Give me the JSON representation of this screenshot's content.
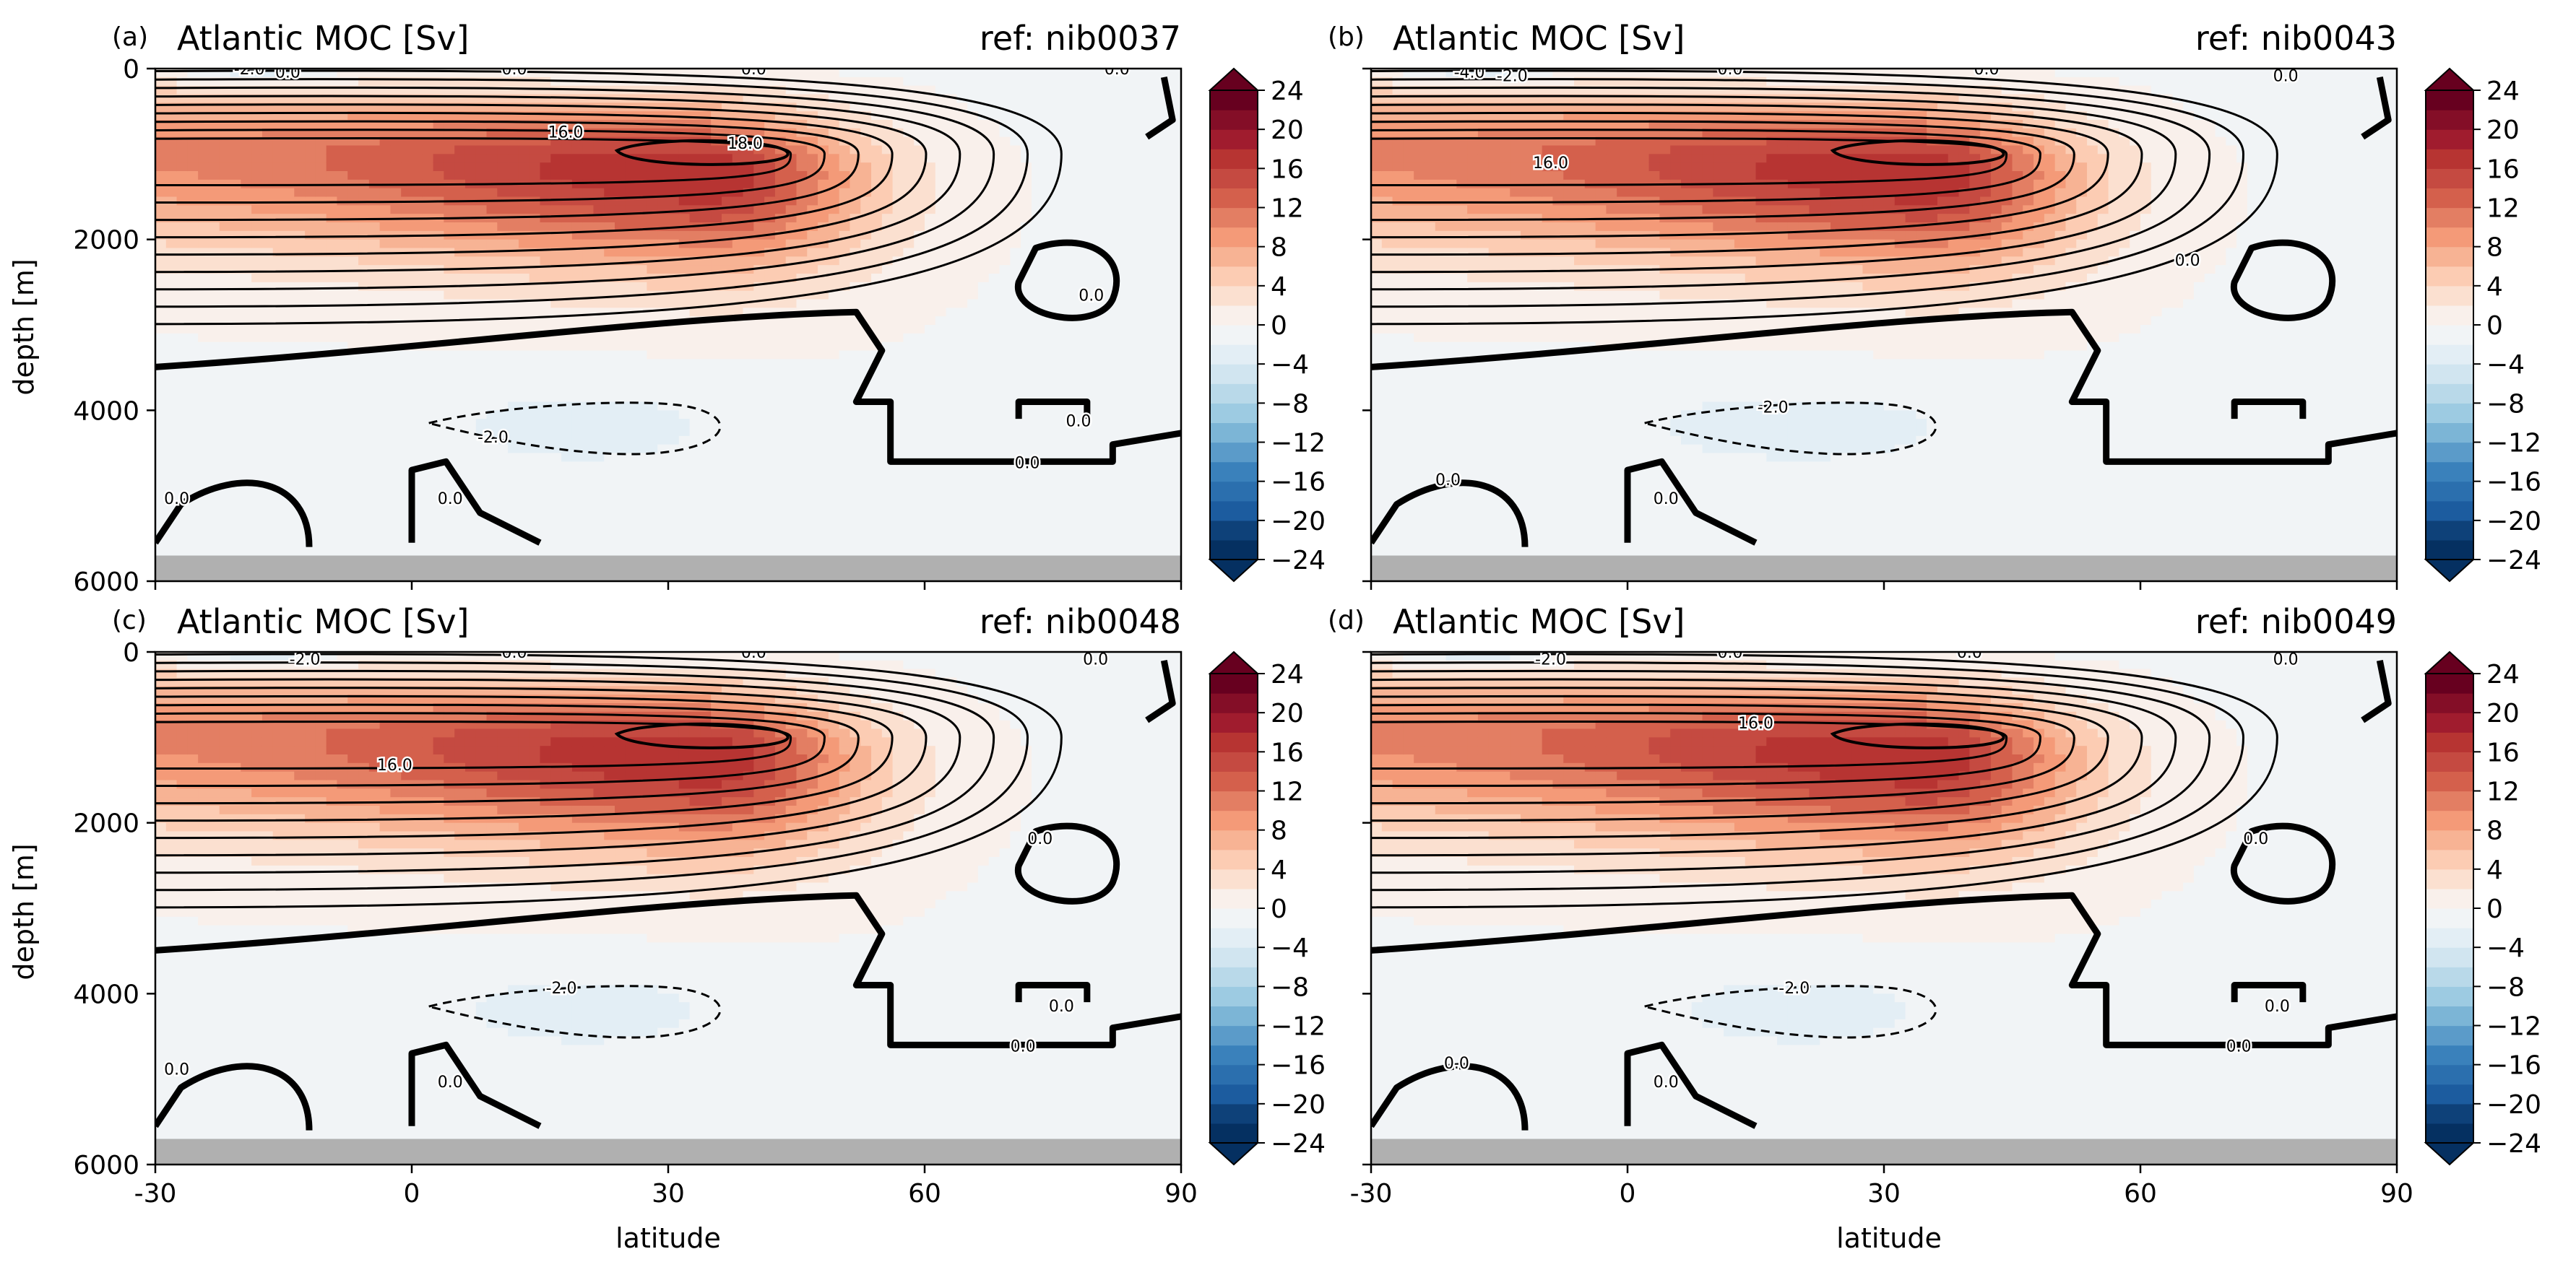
{
  "figure": {
    "panels": [
      {
        "letter": "(a)",
        "title": "Atlantic MOC [Sv]",
        "ref": "ref: nib0037",
        "clabels": [
          {
            "t": "-2.0",
            "lat": -19,
            "d": 0
          },
          {
            "t": "0.0",
            "lat": -14.5,
            "d": 40
          },
          {
            "t": "0.0",
            "lat": 12,
            "d": 0
          },
          {
            "t": "0.0",
            "lat": 40,
            "d": 0
          },
          {
            "t": "0.0",
            "lat": 82.5,
            "d": 0
          },
          {
            "t": "16.0",
            "lat": 18,
            "d": 740
          },
          {
            "t": "18.0",
            "lat": 39,
            "d": 870
          },
          {
            "t": "0.0",
            "lat": 79.5,
            "d": 2650
          },
          {
            "t": "-2.0",
            "lat": 9.5,
            "d": 4310
          },
          {
            "t": "0.0",
            "lat": 78,
            "d": 4120
          },
          {
            "t": "0.0",
            "lat": 72,
            "d": 4610
          },
          {
            "t": "0.0",
            "lat": -27.5,
            "d": 5030
          },
          {
            "t": "0.0",
            "lat": 4.5,
            "d": 5030
          }
        ]
      },
      {
        "letter": "(b)",
        "title": "Atlantic MOC [Sv]",
        "ref": "ref: nib0043",
        "clabels": [
          {
            "t": "-4.0",
            "lat": -18.5,
            "d": 40
          },
          {
            "t": "-2.0",
            "lat": -13.5,
            "d": 80
          },
          {
            "t": "0.0",
            "lat": 12,
            "d": 0
          },
          {
            "t": "0.0",
            "lat": 42,
            "d": 0
          },
          {
            "t": "0.0",
            "lat": 77,
            "d": 80
          },
          {
            "t": "16.0",
            "lat": -9,
            "d": 1100
          },
          {
            "t": "0.0",
            "lat": 65.5,
            "d": 2240
          },
          {
            "t": "-2.0",
            "lat": 17,
            "d": 3960
          },
          {
            "t": "0.0",
            "lat": -21,
            "d": 4810
          },
          {
            "t": "0.0",
            "lat": 4.5,
            "d": 5030
          }
        ]
      },
      {
        "letter": "(c)",
        "title": "Atlantic MOC [Sv]",
        "ref": "ref: nib0048",
        "clabels": [
          {
            "t": "-2.0",
            "lat": -12.5,
            "d": 80
          },
          {
            "t": "0.0",
            "lat": 12,
            "d": 0
          },
          {
            "t": "0.0",
            "lat": 40,
            "d": 0
          },
          {
            "t": "0.0",
            "lat": 80,
            "d": 80
          },
          {
            "t": "16.0",
            "lat": -2,
            "d": 1320
          },
          {
            "t": "0.0",
            "lat": 73.5,
            "d": 2180
          },
          {
            "t": "-2.0",
            "lat": 17.5,
            "d": 3930
          },
          {
            "t": "0.0",
            "lat": 76,
            "d": 4140
          },
          {
            "t": "0.0",
            "lat": 71.5,
            "d": 4610
          },
          {
            "t": "0.0",
            "lat": -27.5,
            "d": 4880
          },
          {
            "t": "0.0",
            "lat": 4.5,
            "d": 5030
          }
        ]
      },
      {
        "letter": "(d)",
        "title": "Atlantic MOC [Sv]",
        "ref": "ref: nib0049",
        "clabels": [
          {
            "t": "-2.0",
            "lat": -9,
            "d": 80
          },
          {
            "t": "0.0",
            "lat": 12,
            "d": 0
          },
          {
            "t": "0.0",
            "lat": 40,
            "d": 0
          },
          {
            "t": "0.0",
            "lat": 77,
            "d": 80
          },
          {
            "t": "16.0",
            "lat": 15,
            "d": 830
          },
          {
            "t": "0.0",
            "lat": 73.5,
            "d": 2180
          },
          {
            "t": "-2.0",
            "lat": 19.5,
            "d": 3930
          },
          {
            "t": "0.0",
            "lat": 76,
            "d": 4140
          },
          {
            "t": "0.0",
            "lat": 71.5,
            "d": 4610
          },
          {
            "t": "0.0",
            "lat": -20,
            "d": 4810
          },
          {
            "t": "0.0",
            "lat": 4.5,
            "d": 5030
          }
        ]
      }
    ]
  },
  "chart_data": {
    "type": "heatmap",
    "subtype": "filled contour (streamfunction) with contour lines",
    "xlabel": "latitude",
    "ylabel": "depth [m]",
    "xlim": [
      -30,
      90
    ],
    "ylim": [
      6000,
      0
    ],
    "xticks": [
      "-30",
      "0",
      "30",
      "60",
      "90"
    ],
    "yticks": [
      "0",
      "2000",
      "4000",
      "6000"
    ],
    "x_tick_values": [
      -30,
      0,
      30,
      60,
      90
    ],
    "y_tick_values": [
      0,
      2000,
      4000,
      6000
    ],
    "colorbar": {
      "cmap": "RdBu_r",
      "levels": [
        -24,
        -22,
        -20,
        -18,
        -16,
        -14,
        -12,
        -10,
        -8,
        -6,
        -4,
        -2,
        0,
        2,
        4,
        6,
        8,
        10,
        12,
        14,
        16,
        18,
        20,
        22,
        24
      ],
      "tick_labels": [
        "24",
        "20",
        "16",
        "12",
        "8",
        "4",
        "0",
        "−4",
        "−8",
        "−12",
        "−16",
        "−20",
        "−24"
      ],
      "tick_values": [
        24,
        20,
        16,
        12,
        8,
        4,
        0,
        -4,
        -8,
        -12,
        -16,
        -20,
        -24
      ],
      "extend": "both",
      "colors": [
        "#053061",
        "#0e4179",
        "#1c5c9f",
        "#2b6fae",
        "#3a81bb",
        "#5b9bc9",
        "#7cb5d6",
        "#9dcbe2",
        "#b9d9e9",
        "#d1e5f0",
        "#e3eef5",
        "#f1f4f6",
        "#f9f0eb",
        "#fbe0d0",
        "#fcccb3",
        "#f7b394",
        "#f49a78",
        "#e37e63",
        "#d4604c",
        "#c54a41",
        "#b73432",
        "#a01c2e",
        "#840e27",
        "#67001f"
      ]
    },
    "series": [
      {
        "name": "nib0037",
        "overturning_max_Sv": 18,
        "max_lat": 34,
        "max_depth": 1000,
        "deep_cell_min_Sv": -2
      },
      {
        "name": "nib0043",
        "overturning_max_Sv": 18,
        "max_lat": 34,
        "max_depth": 1000,
        "deep_cell_min_Sv": -2
      },
      {
        "name": "nib0048",
        "overturning_max_Sv": 18,
        "max_lat": 34,
        "max_depth": 1000,
        "deep_cell_min_Sv": -2
      },
      {
        "name": "nib0049",
        "overturning_max_Sv": 18,
        "max_lat": 34,
        "max_depth": 1000,
        "deep_cell_min_Sv": -2
      }
    ],
    "bottom_mask_depth": [
      5700,
      6000
    ],
    "colors": {
      "zero_contour": "#000000",
      "mask": "#b0b0b0",
      "background": "#ffffff"
    }
  }
}
